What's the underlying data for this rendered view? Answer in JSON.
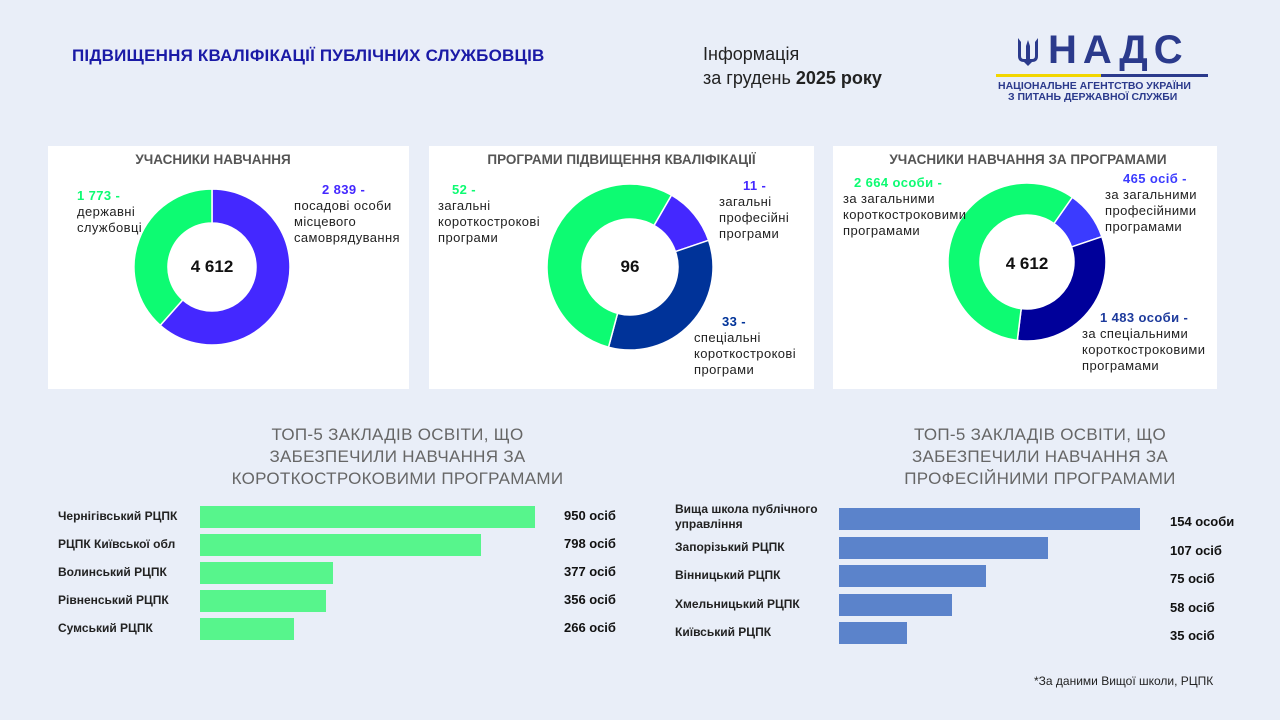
{
  "header": {
    "title": "ПІДВИЩЕННЯ КВАЛІФІКАЦІЇ ПУБЛІЧНИХ СЛУЖБОВЦІВ",
    "info_line1": "Інформація",
    "info_line2_prefix": "за грудень ",
    "info_line2_bold": "2025 року"
  },
  "logo": {
    "abbr": "НАДС",
    "line1": "НАЦІОНАЛЬНЕ АГЕНТСТВО УКРАЇНИ",
    "line2": "З ПИТАНЬ ДЕРЖАВНОЇ СЛУЖБИ",
    "emblem": "trident-icon"
  },
  "colors": {
    "background": "#e9eef8",
    "green": "#0dfb72",
    "purple": "#4428ff",
    "navy1": "#003399",
    "navy2": "#00009a",
    "bar_green": "#57f58c",
    "bar_blue": "#5b83cb",
    "title_blue": "#1a1aa6"
  },
  "chart_data": [
    {
      "type": "pie",
      "title": "УЧАСНИКИ НАВЧАННЯ",
      "center_label": "4 612",
      "slices": [
        {
          "value": 2839,
          "label_value": "2 839  -",
          "label": "посадові особи місцевого самоврядування",
          "color": "#4428ff"
        },
        {
          "value": 1773,
          "label_value": "1 773 -",
          "label": "державні службовці",
          "color": "#0dfb72"
        }
      ]
    },
    {
      "type": "pie",
      "title": "ПРОГРАМИ ПІДВИЩЕННЯ КВАЛІФІКАЦІЇ",
      "center_label": "96",
      "slices": [
        {
          "value": 11,
          "label_value": "11 -",
          "label": "загальні професійні програми",
          "color": "#4428ff"
        },
        {
          "value": 33,
          "label_value": "33 -",
          "label": "спеціальні короткострокові програми",
          "color": "#003399"
        },
        {
          "value": 52,
          "label_value": "52 -",
          "label": "загальні короткострокові програми",
          "color": "#0dfb72"
        }
      ]
    },
    {
      "type": "pie",
      "title": "УЧАСНИКИ НАВЧАННЯ ЗА ПРОГРАМАМИ",
      "center_label": "4 612",
      "slices": [
        {
          "value": 465,
          "label_value": "465 осіб -",
          "label": "за загальними професійними програмами",
          "color": "#3b3bff"
        },
        {
          "value": 1483,
          "label_value": "1 483 особи -",
          "label": "за спеціальними короткостроковими програмами",
          "color": "#00009a"
        },
        {
          "value": 2664,
          "label_value": "2 664 особи -",
          "label": "за загальними короткостроковими програмами",
          "color": "#0dfb72"
        }
      ]
    },
    {
      "type": "bar",
      "orientation": "horizontal",
      "title": "ТОП-5 ЗАКЛАДІВ ОСВІТИ, ЩО ЗАБЕЗПЕЧИЛИ НАВЧАННЯ ЗА КОРОТКОСТРОКОВИМИ ПРОГРАМАМИ",
      "categories": [
        "Чернігівський РЦПК",
        "РЦПК Київської обл",
        "Волинський РЦПК",
        "Рівненський РЦПК",
        "Сумський РЦПК"
      ],
      "values": [
        950,
        798,
        377,
        356,
        266
      ],
      "value_labels": [
        "950 осіб",
        "798 осіб",
        "377 осіб",
        "356 осіб",
        "266 осіб"
      ],
      "color": "#57f58c"
    },
    {
      "type": "bar",
      "orientation": "horizontal",
      "title": "ТОП-5 ЗАКЛАДІВ ОСВІТИ, ЩО ЗАБЕЗПЕЧИЛИ НАВЧАННЯ ЗА ПРОФЕСІЙНИМИ ПРОГРАМАМИ",
      "categories": [
        "Вища школа публічного управління",
        "Запорізький РЦПК",
        "Вінницький РЦПК",
        "Хмельницький РЦПК",
        "Київський РЦПК"
      ],
      "values": [
        154,
        107,
        75,
        58,
        35
      ],
      "value_labels": [
        "154 особи",
        "107 осіб",
        "75 осіб",
        "58 осіб",
        "35 осіб"
      ],
      "color": "#5b83cb"
    }
  ],
  "footnote": "*За даними Вищої школи, РЦПК"
}
